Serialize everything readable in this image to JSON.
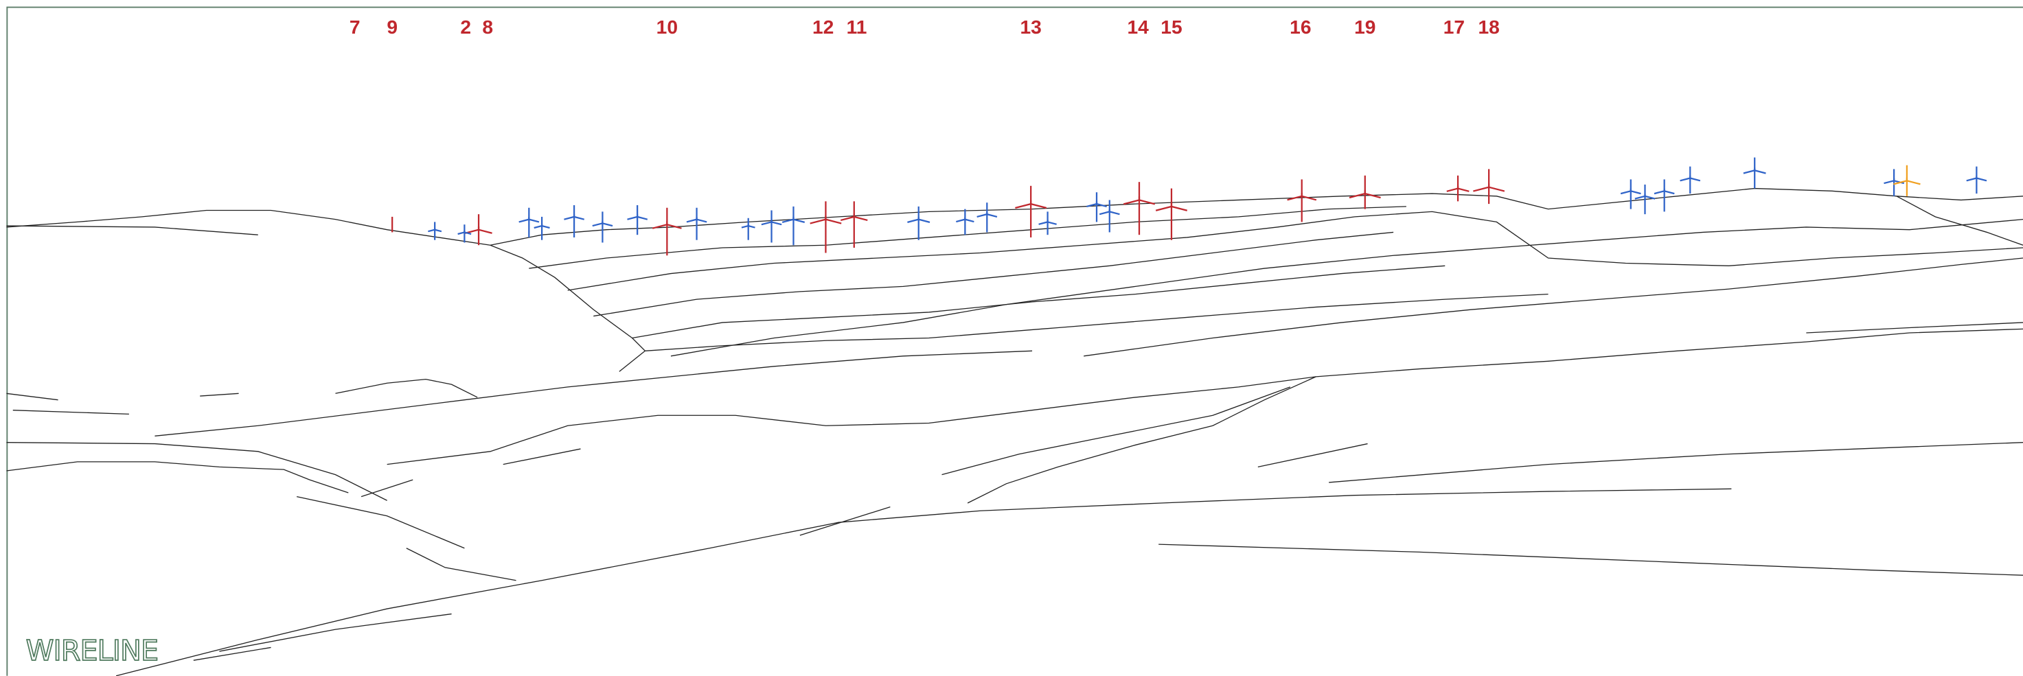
{
  "turbines": [
    {
      "label": "7"
    },
    {
      "label": "9"
    },
    {
      "label": "2"
    },
    {
      "label": "8"
    },
    {
      "label": "10"
    },
    {
      "label": "12"
    },
    {
      "label": "11"
    },
    {
      "label": "13"
    },
    {
      "label": "14"
    },
    {
      "label": "15"
    },
    {
      "label": "16"
    },
    {
      "label": "19"
    },
    {
      "label": "17"
    },
    {
      "label": "18"
    }
  ],
  "watermark": "WIRELINE"
}
